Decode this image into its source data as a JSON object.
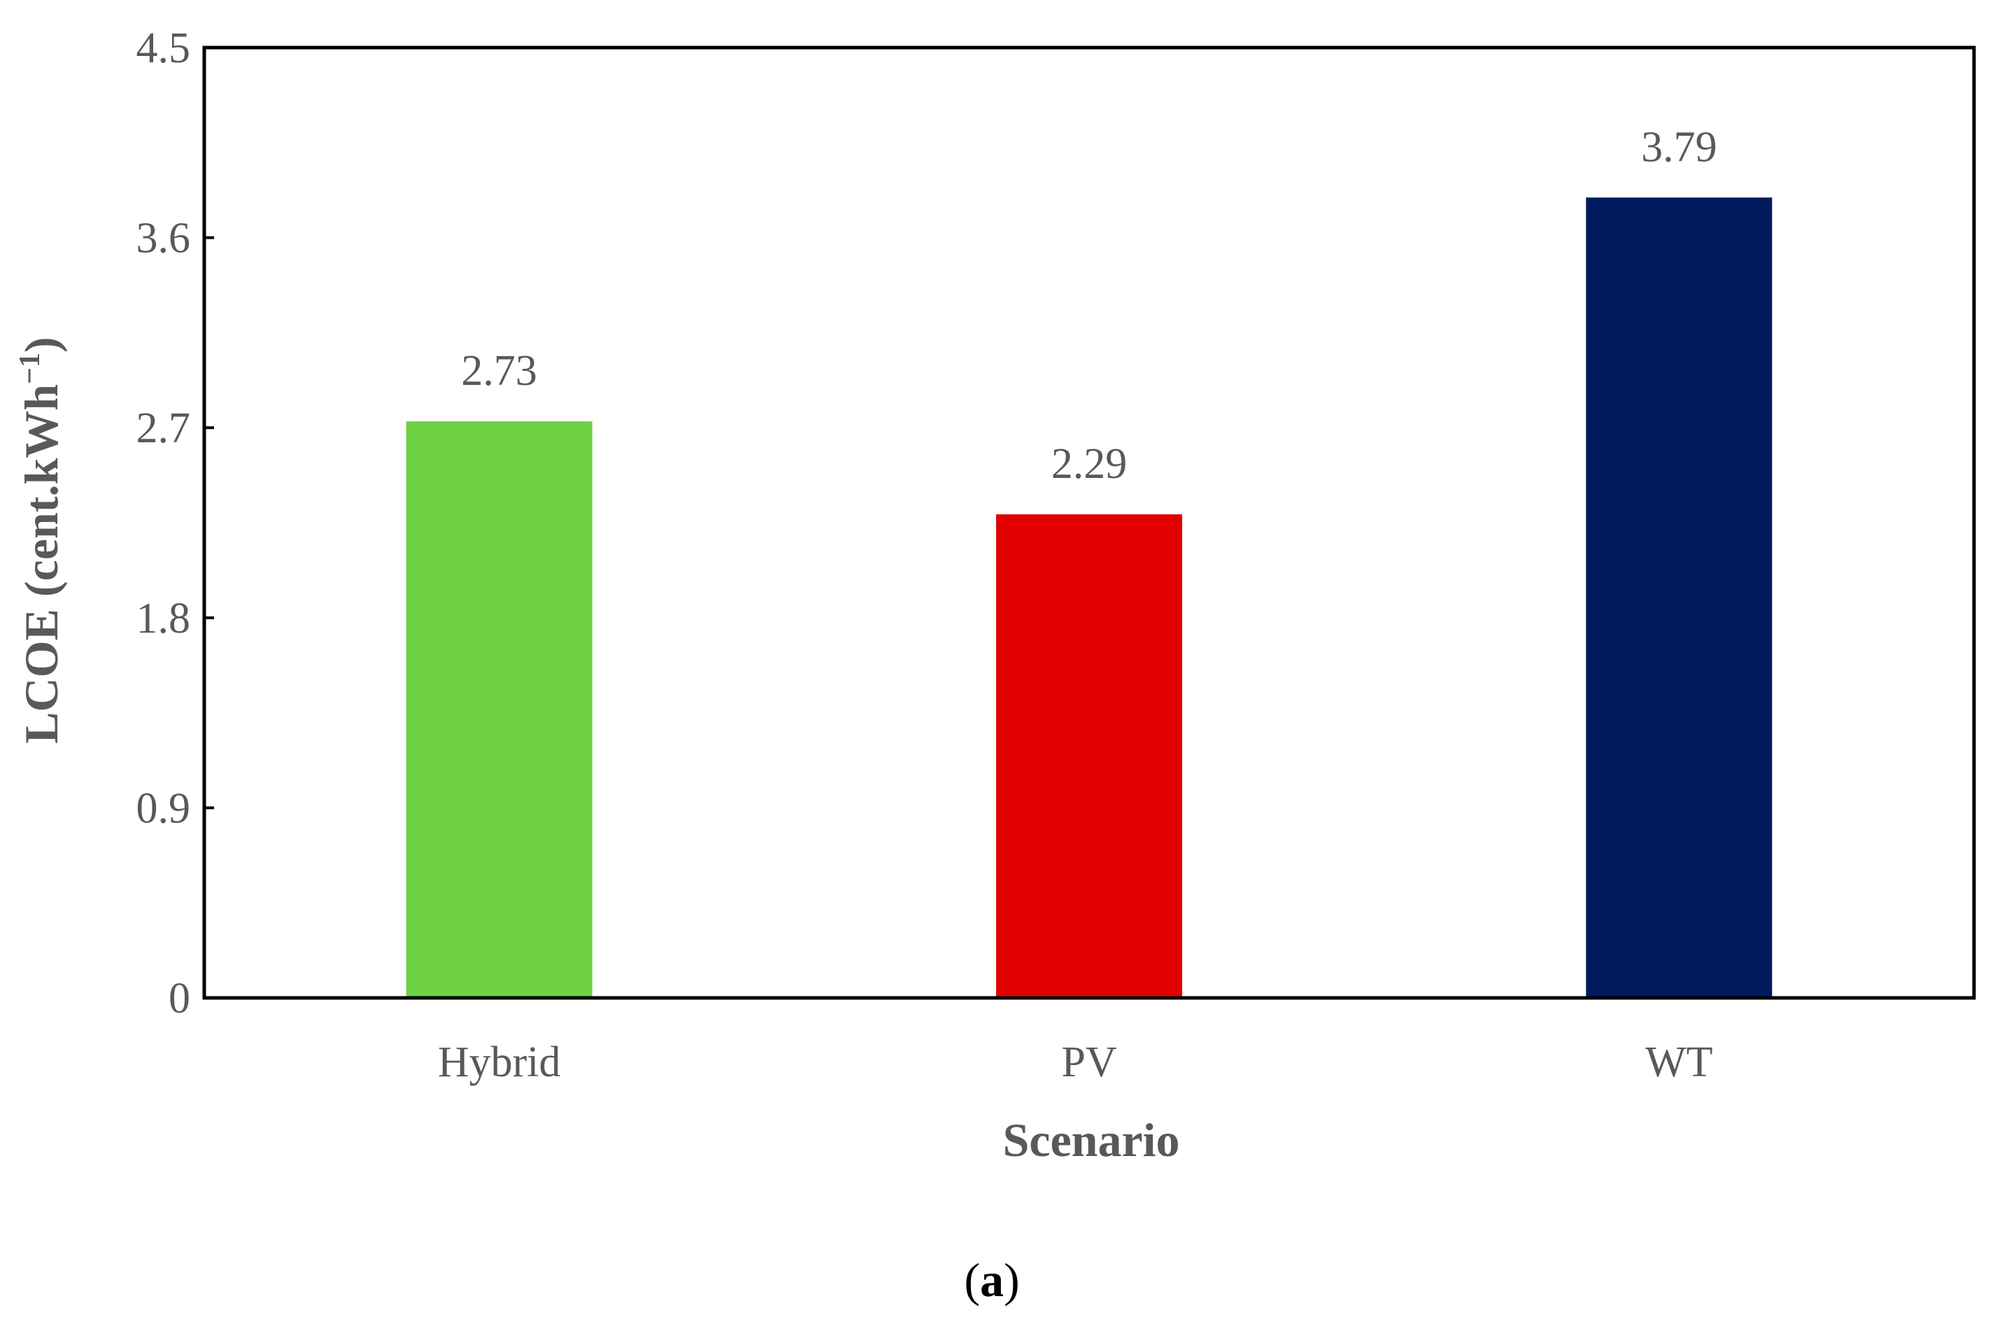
{
  "chart_data": {
    "type": "bar",
    "categories": [
      "Hybrid",
      "PV",
      "WT"
    ],
    "values": [
      2.73,
      2.29,
      3.79
    ],
    "data_labels": [
      "2.73",
      "2.29",
      "3.79"
    ],
    "colors": [
      "#6fd144",
      "#e00000",
      "#001a5e"
    ],
    "xlabel": "Scenario",
    "ylabel": "LCOE (cent.kWh",
    "ylabel_superscript": "−1",
    "ylabel_close": ")",
    "ylim": [
      0,
      4.5
    ],
    "yticks": [
      0,
      0.9,
      1.8,
      2.7,
      3.6,
      4.5
    ],
    "ytick_labels": [
      "0",
      "0.9",
      "1.8",
      "2.7",
      "3.6",
      "4.5"
    ],
    "grid": false,
    "legend": false
  },
  "caption": {
    "open": "(",
    "letter": "a",
    "close": ")"
  }
}
